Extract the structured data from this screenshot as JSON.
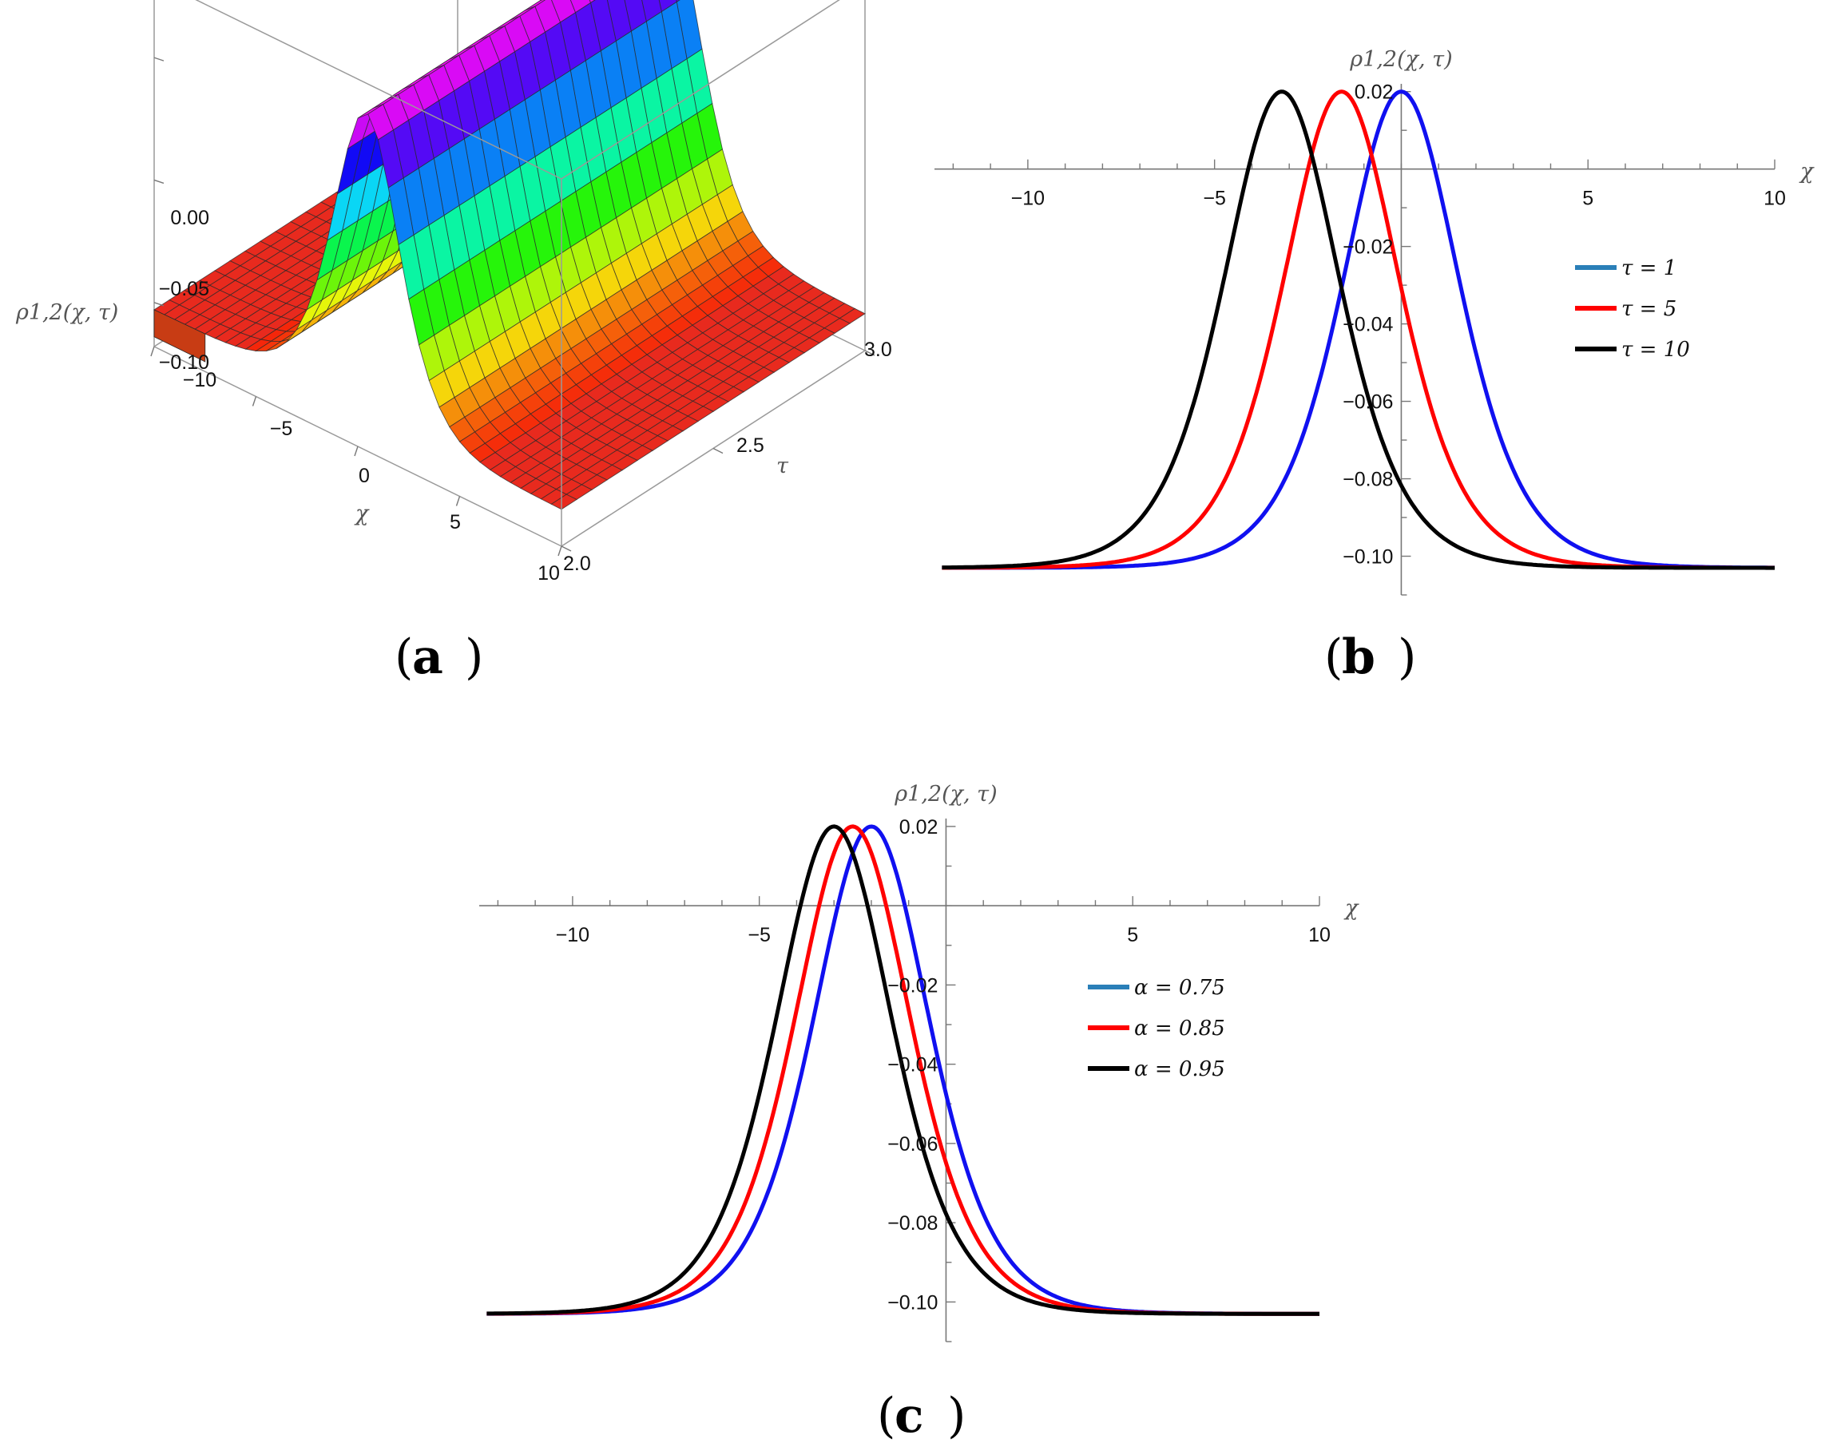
{
  "chart_data": [
    {
      "id": "a",
      "type": "surface3d",
      "panel_label": "a",
      "function": "sech-squared soliton, peak 0.02, background -0.103, width 2.2, center 0.4",
      "x_label": "χ",
      "y_label": "τ",
      "z_label": "ρ1,2(χ, τ)",
      "x_range": [
        -10,
        10
      ],
      "y_range": [
        2.0,
        3.0
      ],
      "z_range": [
        -0.1,
        0.02
      ],
      "x_ticks": [
        "−10",
        "−5",
        "0",
        "5",
        "10"
      ],
      "y_ticks": [
        "2.0",
        "2.5",
        "3.0"
      ],
      "z_ticks": [
        "−0.10",
        "−0.05",
        "0.00"
      ],
      "colormap": "hue (red → yellow → green → cyan → blue → magenta)"
    },
    {
      "id": "b",
      "type": "line",
      "panel_label": "b",
      "xlabel": "χ",
      "ylabel": "ρ1,2(χ, τ)",
      "xlim": [
        -12.5,
        10
      ],
      "ylim": [
        -0.11,
        0.022
      ],
      "x_ticks": [
        -10,
        -5,
        5,
        10
      ],
      "x_tick_labels": [
        "−10",
        "−5",
        "5",
        "10"
      ],
      "y_ticks": [
        0.02,
        -0.02,
        -0.04,
        -0.06,
        -0.08,
        -0.1
      ],
      "y_tick_labels": [
        "0.02",
        "−0.02",
        "−0.04",
        "−0.06",
        "−0.08",
        "−0.10"
      ],
      "legend_position": "right",
      "series": [
        {
          "name": "τ = 1",
          "legend_color": "#2a7fb8",
          "color": "#1010f0",
          "peak_x": 0.0,
          "peak": 0.02,
          "background": -0.103,
          "width": 2.1
        },
        {
          "name": "τ = 5",
          "legend_color": "#ff0000",
          "color": "#ff0000",
          "peak_x": -1.6,
          "peak": 0.02,
          "background": -0.103,
          "width": 2.1
        },
        {
          "name": "τ = 10",
          "legend_color": "#000000",
          "color": "#000000",
          "peak_x": -3.2,
          "peak": 0.02,
          "background": -0.103,
          "width": 2.1
        }
      ]
    },
    {
      "id": "c",
      "type": "line",
      "panel_label": "c",
      "xlabel": "χ",
      "ylabel": "ρ1,2(χ, τ)",
      "xlim": [
        -12.5,
        10
      ],
      "ylim": [
        -0.11,
        0.022
      ],
      "x_ticks": [
        -10,
        -5,
        5,
        10
      ],
      "x_tick_labels": [
        "−10",
        "−5",
        "5",
        "10"
      ],
      "y_ticks": [
        0.02,
        -0.02,
        -0.04,
        -0.06,
        -0.08,
        -0.1
      ],
      "y_tick_labels": [
        "0.02",
        "−0.02",
        "−0.04",
        "−0.06",
        "−0.08",
        "−0.10"
      ],
      "legend_position": "right",
      "series": [
        {
          "name": "α = 0.75",
          "legend_color": "#2a7fb8",
          "color": "#1010f0",
          "peak_x": -2.0,
          "peak": 0.02,
          "background": -0.103,
          "width": 2.1
        },
        {
          "name": "α = 0.85",
          "legend_color": "#ff0000",
          "color": "#ff0000",
          "peak_x": -2.5,
          "peak": 0.02,
          "background": -0.103,
          "width": 2.1
        },
        {
          "name": "α = 0.95",
          "legend_color": "#000000",
          "color": "#000000",
          "peak_x": -3.0,
          "peak": 0.02,
          "background": -0.103,
          "width": 2.1
        }
      ]
    }
  ]
}
